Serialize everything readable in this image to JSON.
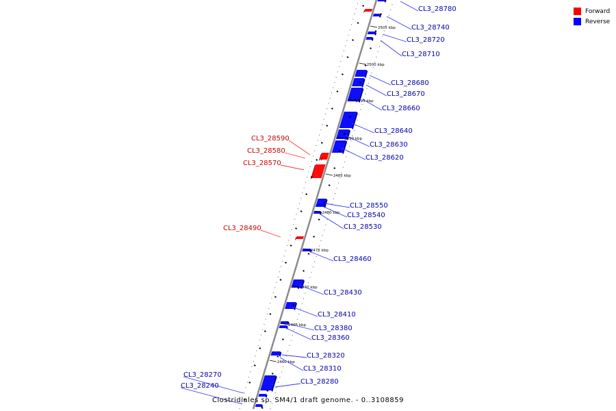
{
  "legend": {
    "forward_label": "Forward",
    "reverse_label": "Reverse",
    "forward_color": "#ff0000",
    "reverse_color": "#0000ff"
  },
  "caption": "Clostridiales sp. SM4/1 draft genome. - 0..3108859",
  "ticks": [
    "2505 kbp",
    "2500 kbp",
    "2495 kbp",
    "2490 kbp",
    "2485 kbp",
    "2480 kbp",
    "2475 kbp",
    "2470 kbp",
    "2465 kbp",
    "2460 kbp"
  ],
  "genes": {
    "reverse": [
      "CL3_28780",
      "CL3_28740",
      "CL3_28720",
      "CL3_28710",
      "CL3_28680",
      "CL3_28670",
      "CL3_28660",
      "CL3_28640",
      "CL3_28630",
      "CL3_28620",
      "CL3_28550",
      "CL3_28540",
      "CL3_28530",
      "CL3_28460",
      "CL3_28430",
      "CL3_28410",
      "CL3_28380",
      "CL3_28360",
      "CL3_28320",
      "CL3_28310",
      "CL3_28280",
      "CL3_28270",
      "CL3_28240"
    ],
    "forward": [
      "CL3_28590",
      "CL3_28580",
      "CL3_28570",
      "CL3_28490"
    ]
  }
}
